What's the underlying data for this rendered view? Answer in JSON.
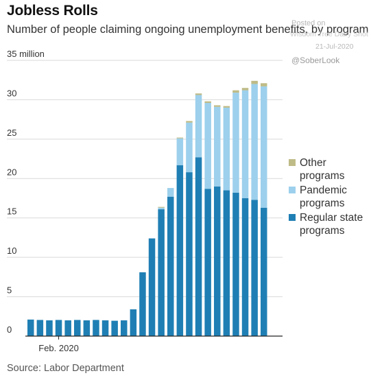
{
  "title": "Jobless Rolls",
  "subtitle": "Number of people claiming ongoing unemployment benefits, by program",
  "watermark": {
    "posted": "Posted on",
    "site": "Wisdom Tree Dairy Shot",
    "date": "21-Jul-2020",
    "handle": "@SoberLook"
  },
  "source": "Source: Labor Department",
  "colors": {
    "regular": "#1f7fb4",
    "pandemic": "#9dd0ec",
    "other": "#bfbb87",
    "grid": "#d9d9d9",
    "axis": "#222222",
    "text": "#333333"
  },
  "legend": [
    {
      "key": "other",
      "label_line1": "Other",
      "label_line2": "programs"
    },
    {
      "key": "pandemic",
      "label_line1": "Pandemic",
      "label_line2": "programs"
    },
    {
      "key": "regular",
      "label_line1": "Regular state",
      "label_line2": "programs"
    }
  ],
  "chart_data": {
    "type": "bar",
    "stacked": true,
    "title": "Jobless Rolls",
    "subtitle": "Number of people claiming ongoing unemployment benefits, by program",
    "ylim": [
      0,
      35
    ],
    "yticks": [
      0,
      5,
      10,
      15,
      20,
      25,
      30,
      35
    ],
    "ytick_labels": [
      "0",
      "5",
      "10",
      "15",
      "20",
      "25",
      "30",
      "35 million"
    ],
    "xtick_label": "Feb. 2020",
    "xtick_index": 3,
    "grid": true,
    "legend_position": "right",
    "series": [
      {
        "name": "Regular state programs",
        "key": "regular",
        "values": [
          2.1,
          2.05,
          2.0,
          2.05,
          2.0,
          2.05,
          2.0,
          2.05,
          2.0,
          1.95,
          2.0,
          3.4,
          8.1,
          12.4,
          16.1,
          17.7,
          21.7,
          20.8,
          22.7,
          18.7,
          19.0,
          18.5,
          18.2,
          17.5,
          17.3,
          16.3
        ]
      },
      {
        "name": "Pandemic programs",
        "key": "pandemic",
        "values": [
          0,
          0,
          0,
          0,
          0,
          0,
          0,
          0,
          0,
          0,
          0,
          0,
          0,
          0,
          0.2,
          1.1,
          3.4,
          6.3,
          7.9,
          10.9,
          10.1,
          10.5,
          12.7,
          13.7,
          14.7,
          15.4
        ]
      },
      {
        "name": "Other programs",
        "key": "other",
        "values": [
          0,
          0,
          0,
          0,
          0,
          0,
          0,
          0,
          0,
          0,
          0,
          0,
          0,
          0,
          0.1,
          0,
          0.1,
          0.2,
          0.2,
          0.2,
          0.2,
          0.2,
          0.3,
          0.3,
          0.4,
          0.4
        ]
      }
    ]
  }
}
